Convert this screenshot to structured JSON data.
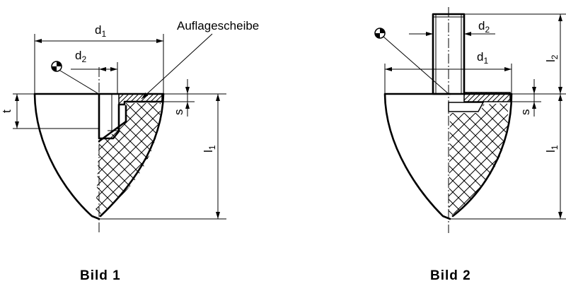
{
  "labels": {
    "d1": "d",
    "d1_sub": "1",
    "d2": "d",
    "d2_sub": "2",
    "l1": "l",
    "l1_sub": "1",
    "l2": "l",
    "l2_sub": "2",
    "t": "t",
    "s": "s",
    "washer": "Auflagescheibe"
  },
  "captions": {
    "bild1": "Bild 1",
    "bild2": "Bild 2"
  },
  "icons": {
    "center_of_gravity": "center-of-gravity-symbol"
  }
}
